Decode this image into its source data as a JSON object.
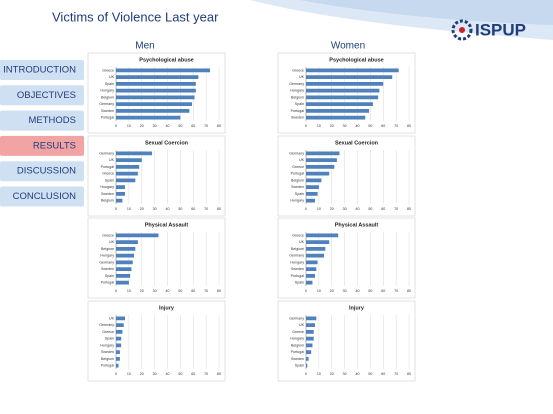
{
  "title": "Victims of Violence Last year",
  "logo": "ISPUP",
  "nav": [
    "INTRODUCTION",
    "OBJECTIVES",
    "METHODS",
    "RESULTS",
    "DISCUSSION",
    "CONCLUSION"
  ],
  "groups": [
    "Men",
    "Women"
  ],
  "chart_data": [
    {
      "type": "bar",
      "title": "Psychological abuse",
      "categories": [
        "Greece",
        "UK",
        "Spain",
        "Hungary",
        "Belgium",
        "Germany",
        "Sweden",
        "Portugal"
      ],
      "values": [
        73,
        64,
        62,
        62,
        61,
        59,
        57,
        50
      ],
      "color": "#4f81bd",
      "xlim": [
        0,
        80
      ],
      "xticks": [
        0,
        10,
        20,
        30,
        40,
        50,
        60,
        70,
        80
      ],
      "grid": true
    },
    {
      "type": "bar",
      "title": "Sexual Coercion",
      "categories": [
        "Germany",
        "UK",
        "Portugal",
        "Greece",
        "Spain",
        "Hungary",
        "Sweden",
        "Belgium"
      ],
      "values": [
        28,
        20,
        18,
        17,
        15,
        7,
        7,
        5
      ],
      "color": "#4f81bd",
      "xlim": [
        0,
        80
      ],
      "xticks": [
        0,
        10,
        20,
        30,
        40,
        50,
        60,
        70,
        80
      ],
      "grid": true
    },
    {
      "type": "bar",
      "title": "Physical Assault",
      "categories": [
        "Greece",
        "UK",
        "Belgium",
        "Hungary",
        "Germany",
        "Sweden",
        "Spain",
        "Portugal"
      ],
      "values": [
        33,
        17,
        15,
        14,
        13,
        12,
        11,
        10
      ],
      "color": "#4f81bd",
      "xlim": [
        0,
        80
      ],
      "xticks": [
        0,
        10,
        20,
        30,
        40,
        50,
        60,
        70,
        80
      ],
      "grid": true
    },
    {
      "type": "bar",
      "title": "Injury",
      "categories": [
        "UK",
        "Germany",
        "Greece",
        "Spain",
        "Hungary",
        "Sweden",
        "Belgium",
        "Portugal"
      ],
      "values": [
        7,
        6,
        5,
        4,
        4,
        3,
        3,
        2
      ],
      "color": "#4f81bd",
      "xlim": [
        0,
        80
      ],
      "xticks": [
        0,
        10,
        20,
        30,
        40,
        50,
        60,
        70,
        80
      ],
      "grid": true
    },
    {
      "type": "bar",
      "title": "Psychological abuse",
      "categories": [
        "Greece",
        "UK",
        "Germany",
        "Hungary",
        "Belgium",
        "Spain",
        "Portugal",
        "Sweden"
      ],
      "values": [
        72,
        67,
        60,
        57,
        56,
        52,
        49,
        46
      ],
      "color": "#4f81bd",
      "xlim": [
        0,
        80
      ],
      "xticks": [
        0,
        10,
        20,
        30,
        40,
        50,
        60,
        70,
        80
      ],
      "grid": true
    },
    {
      "type": "bar",
      "title": "Sexual Coercion",
      "categories": [
        "Germany",
        "UK",
        "Greece",
        "Portugal",
        "Belgium",
        "Sweden",
        "Spain",
        "Hungary"
      ],
      "values": [
        26,
        24,
        22,
        18,
        12,
        10,
        9,
        7
      ],
      "color": "#4f81bd",
      "xlim": [
        0,
        80
      ],
      "xticks": [
        0,
        10,
        20,
        30,
        40,
        50,
        60,
        70,
        80
      ],
      "grid": true
    },
    {
      "type": "bar",
      "title": "Physical Assault",
      "categories": [
        "Greece",
        "UK",
        "Belgium",
        "Germany",
        "Hungary",
        "Sweden",
        "Portugal",
        "Spain"
      ],
      "values": [
        25,
        18,
        15,
        14,
        9,
        8,
        7,
        5
      ],
      "color": "#4f81bd",
      "xlim": [
        0,
        80
      ],
      "xticks": [
        0,
        10,
        20,
        30,
        40,
        50,
        60,
        70,
        80
      ],
      "grid": true
    },
    {
      "type": "bar",
      "title": "Injury",
      "categories": [
        "Germany",
        "UK",
        "Greece",
        "Hungary",
        "Belgium",
        "Portugal",
        "Sweden",
        "Spain"
      ],
      "values": [
        8,
        7,
        6,
        6,
        5,
        4,
        2,
        1
      ],
      "color": "#4f81bd",
      "xlim": [
        0,
        80
      ],
      "xticks": [
        0,
        10,
        20,
        30,
        40,
        50,
        60,
        70,
        80
      ],
      "grid": true
    }
  ]
}
